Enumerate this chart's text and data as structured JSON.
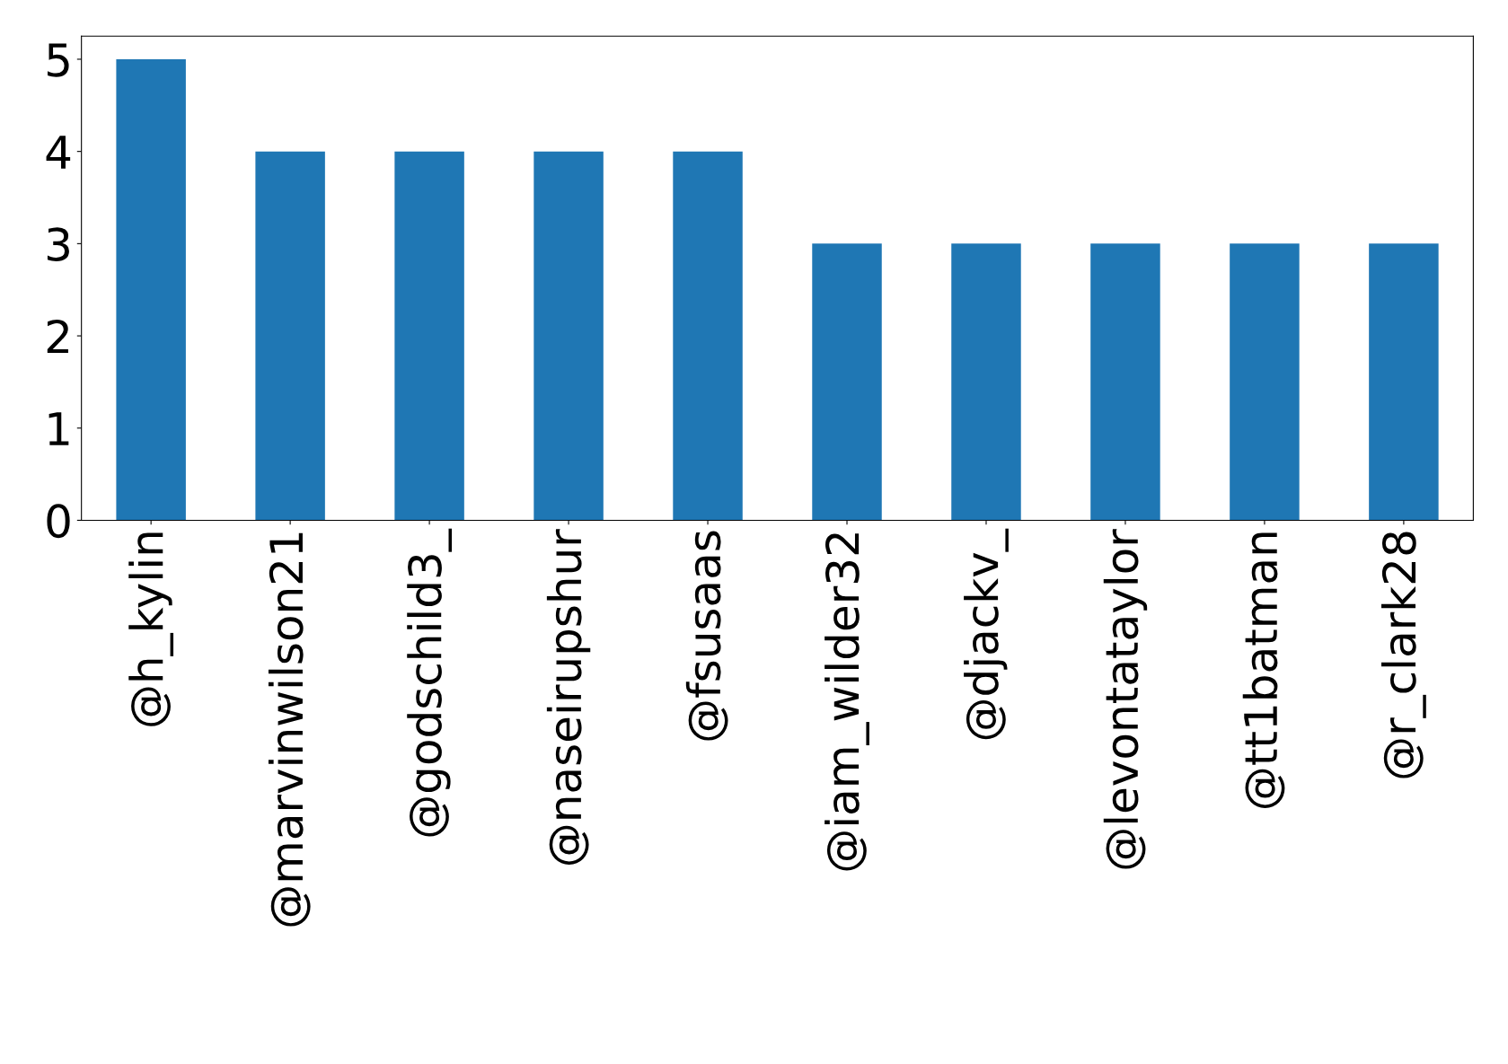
{
  "chart_data": {
    "type": "bar",
    "categories": [
      "@h_kylin",
      "@marvinwilson21",
      "@godschild3_",
      "@naseirupshur",
      "@fsusaas",
      "@iam_wilder32",
      "@djackv_",
      "@levontataylor",
      "@tt1batman",
      "@r_clark28"
    ],
    "values": [
      5,
      4,
      4,
      4,
      4,
      3,
      3,
      3,
      3,
      3
    ],
    "color": "#1f77b4",
    "ylim": [
      0,
      5.25
    ],
    "yticks": [
      0,
      1,
      2,
      3,
      4,
      5
    ],
    "grid": false,
    "legend": false
  }
}
